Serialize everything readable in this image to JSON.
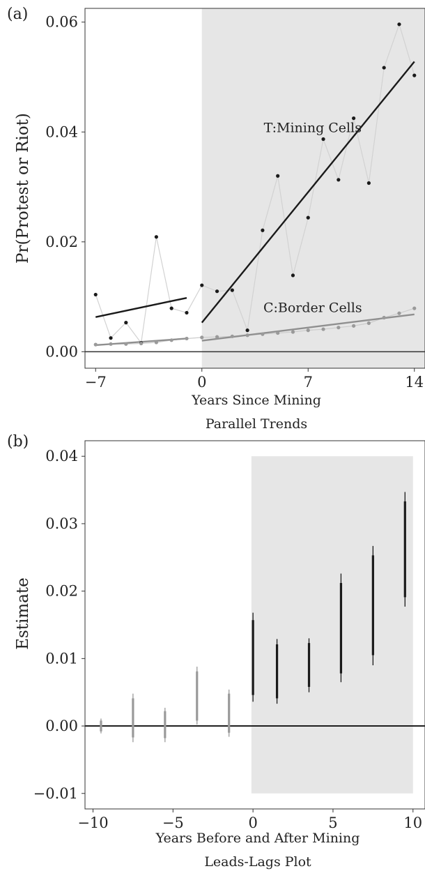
{
  "chart_data": [
    {
      "type": "scatter",
      "panel_label": "(a)",
      "title": "",
      "xlabel": "Years Since Mining",
      "ylabel": "Pr(Protest or Riot)",
      "subcaption": "Parallel Trends",
      "xlim": [
        -7.7,
        14.7
      ],
      "ylim": [
        -0.003,
        0.0625
      ],
      "xticks": [
        -7,
        0,
        7,
        14
      ],
      "xtick_labels": [
        "−7",
        "0",
        "7",
        "14"
      ],
      "yticks": [
        0,
        0.02,
        0.04,
        0.06
      ],
      "ytick_labels": [
        "0.00",
        "0.02",
        "0.04",
        "0.06"
      ],
      "grid": false,
      "legend": "none",
      "shaded_region": {
        "x_from": 0,
        "x_to": 14.7,
        "color": "#e6e6e6"
      },
      "hline": {
        "y": 0,
        "color": "#333333"
      },
      "series": [
        {
          "name": "T:Mining Cells",
          "point_color": "#1a1a1a",
          "connector_color": "#d2d2d2",
          "x": [
            -7,
            -6,
            -5,
            -4,
            -3,
            -2,
            -1,
            0,
            1,
            2,
            3,
            4,
            5,
            6,
            7,
            8,
            9,
            10,
            11,
            12,
            13,
            14
          ],
          "y": [
            0.0104,
            0.0025,
            0.0053,
            0.0016,
            0.0209,
            0.0079,
            0.0071,
            0.0121,
            0.011,
            0.0112,
            0.0039,
            0.0221,
            0.032,
            0.0139,
            0.0244,
            0.0387,
            0.0313,
            0.0425,
            0.0307,
            0.0517,
            0.0596,
            0.0503
          ],
          "fits": [
            {
              "x": [
                -7,
                -1
              ],
              "y": [
                0.0063,
                0.0098
              ]
            },
            {
              "x": [
                0,
                14
              ],
              "y": [
                0.0053,
                0.0528
              ]
            }
          ],
          "fit_color": "#1a1a1a"
        },
        {
          "name": "C:Border Cells",
          "point_color": "#9a9a9a",
          "connector_color": "#cccccc",
          "x": [
            -7,
            -6,
            -5,
            -4,
            -3,
            -2,
            -1,
            0,
            1,
            2,
            3,
            4,
            5,
            6,
            7,
            8,
            9,
            10,
            11,
            12,
            13,
            14
          ],
          "y": [
            0.0013,
            0.0014,
            0.0014,
            0.0015,
            0.0017,
            0.0021,
            0.0024,
            0.0026,
            0.0027,
            0.0028,
            0.003,
            0.0032,
            0.0034,
            0.0036,
            0.0039,
            0.0041,
            0.0044,
            0.0047,
            0.0052,
            0.0062,
            0.007,
            0.0079
          ],
          "fits": [
            {
              "x": [
                -7,
                -1
              ],
              "y": [
                0.0012,
                0.0024
              ]
            },
            {
              "x": [
                0,
                14
              ],
              "y": [
                0.002,
                0.0068
              ]
            }
          ],
          "fit_color": "#8f8f8f"
        }
      ],
      "annotations": [
        {
          "text": "T:Mining Cells",
          "x": 7.3,
          "y": 0.04,
          "color": "#222222"
        },
        {
          "text": "C:Border Cells",
          "x": 7.3,
          "y": 0.0072,
          "color": "#a3a3a3"
        }
      ]
    },
    {
      "type": "errorbar",
      "panel_label": "(b)",
      "title": "",
      "xlabel": "Years Before and After Mining",
      "ylabel": "Estimate",
      "subcaption": "Leads-Lags Plot",
      "xlim": [
        -10.5,
        10.75
      ],
      "ylim": [
        -0.0123,
        0.0423
      ],
      "xticks": [
        -10,
        -5,
        0,
        5,
        10
      ],
      "xtick_labels": [
        "−10",
        "−5",
        "0",
        "5",
        "10"
      ],
      "yticks": [
        -0.01,
        0,
        0.01,
        0.02,
        0.03,
        0.04
      ],
      "ytick_labels": [
        "−0.01",
        "0.00",
        "0.01",
        "0.02",
        "0.03",
        "0.04"
      ],
      "grid": false,
      "legend": "none",
      "shaded_region": {
        "x_from": -0.1,
        "x_to": 10,
        "y_from": -0.01,
        "y_to": 0.04,
        "color": "#e6e6e6"
      },
      "hline": {
        "y": 0,
        "color": "#1f1f1f"
      },
      "estimates": [
        {
          "x": -9.5,
          "ci95": [
            -0.0011,
            0.0011
          ],
          "ci90": [
            -0.0008,
            0.0008
          ],
          "color": "#9a9a9a"
        },
        {
          "x": -7.5,
          "ci95": [
            -0.0024,
            0.0048
          ],
          "ci90": [
            -0.0017,
            0.0041
          ],
          "color": "#9a9a9a"
        },
        {
          "x": -5.5,
          "ci95": [
            -0.0024,
            0.0027
          ],
          "ci90": [
            -0.0018,
            0.0022
          ],
          "color": "#9a9a9a"
        },
        {
          "x": -3.5,
          "ci95": [
            0.0002,
            0.0088
          ],
          "ci90": [
            0.0008,
            0.0081
          ],
          "color": "#9a9a9a"
        },
        {
          "x": -1.5,
          "ci95": [
            -0.0016,
            0.0054
          ],
          "ci90": [
            -0.001,
            0.0048
          ],
          "color": "#9a9a9a"
        },
        {
          "x": 0,
          "ci95": [
            0.0036,
            0.0168
          ],
          "ci90": [
            0.0046,
            0.0157
          ],
          "color": "#1a1a1a"
        },
        {
          "x": 1.5,
          "ci95": [
            0.0033,
            0.0129
          ],
          "ci90": [
            0.0041,
            0.0121
          ],
          "color": "#1a1a1a"
        },
        {
          "x": 3.5,
          "ci95": [
            0.005,
            0.013
          ],
          "ci90": [
            0.0058,
            0.0123
          ],
          "color": "#1a1a1a"
        },
        {
          "x": 5.5,
          "ci95": [
            0.0065,
            0.0226
          ],
          "ci90": [
            0.0078,
            0.0212
          ],
          "color": "#1a1a1a"
        },
        {
          "x": 7.5,
          "ci95": [
            0.009,
            0.0267
          ],
          "ci90": [
            0.0105,
            0.0253
          ],
          "color": "#1a1a1a"
        },
        {
          "x": 9.5,
          "ci95": [
            0.0177,
            0.0347
          ],
          "ci90": [
            0.0191,
            0.0333
          ],
          "color": "#1a1a1a"
        }
      ]
    }
  ]
}
